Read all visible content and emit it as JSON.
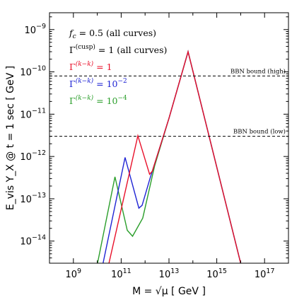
{
  "chart_data": {
    "type": "line",
    "xlabel": "M = √μ  [ GeV ]",
    "ylabel": "E_vis Y_X @ t = 1 sec [ GeV ]",
    "x_scale": "log",
    "y_scale": "log",
    "xlim": [
      100000000.0,
      1e+18
    ],
    "ylim": [
      3e-15,
      2.5e-09
    ],
    "x_ticks": [
      1000000000.0,
      100000000000.0,
      10000000000000.0,
      1000000000000000.0,
      1e+17
    ],
    "x_tick_labels": [
      {
        "base": "10",
        "exp": "9"
      },
      {
        "base": "10",
        "exp": "11"
      },
      {
        "base": "10",
        "exp": "13"
      },
      {
        "base": "10",
        "exp": "15"
      },
      {
        "base": "10",
        "exp": "17"
      }
    ],
    "y_ticks": [
      1e-14,
      1e-13,
      1e-12,
      1e-11,
      1e-10,
      1e-09
    ],
    "y_tick_labels": [
      {
        "base": "10",
        "exp": "−14"
      },
      {
        "base": "10",
        "exp": "−13"
      },
      {
        "base": "10",
        "exp": "−12"
      },
      {
        "base": "10",
        "exp": "−11"
      },
      {
        "base": "10",
        "exp": "−10"
      },
      {
        "base": "10",
        "exp": "−9"
      }
    ],
    "legend": {
      "fc_line": {
        "var": "f",
        "sub": "c",
        "rest": " = 0.5 (all curves)"
      },
      "cusp_line": {
        "var": "Γ",
        "sup": "(cusp)",
        "rest": " = 1 (all curves)"
      },
      "entries": [
        {
          "var": "Γ",
          "sup": "(k−k)",
          "rest_base": " = 1",
          "rest_exp": "",
          "color": "#e8102a"
        },
        {
          "var": "Γ",
          "sup": "(k−k)",
          "rest_base": " = 10",
          "rest_exp": "−2",
          "color": "#1f24d4"
        },
        {
          "var": "Γ",
          "sup": "(k−k)",
          "rest_base": " = 10",
          "rest_exp": "−4",
          "color": "#2a9e2a"
        }
      ]
    },
    "hlines": [
      {
        "label": "BBN bound (high)",
        "y": 8e-11
      },
      {
        "label": "BBN bound (low)",
        "y": 3e-12
      }
    ],
    "series": [
      {
        "color": "#2a9e2a",
        "points": [
          [
            10000000000.0,
            2.8e-15
          ],
          [
            55000000000.0,
            3.3e-13
          ],
          [
            180000000000.0,
            1.8e-14
          ],
          [
            300000000000.0,
            1.3e-14
          ],
          [
            800000000000.0,
            3.5e-14
          ],
          [
            2500000000000.0,
            6e-13
          ],
          [
            10000000000000.0,
            8e-12
          ],
          [
            63000000000000.0,
            3e-10
          ],
          [
            1e+16,
            3e-15
          ]
        ]
      },
      {
        "color": "#1f24d4",
        "points": [
          [
            17000000000.0,
            2.8e-15
          ],
          [
            145000000000.0,
            9.5e-13
          ],
          [
            550000000000.0,
            6e-14
          ],
          [
            750000000000.0,
            7e-14
          ],
          [
            1600000000000.0,
            3e-13
          ],
          [
            10000000000000.0,
            8e-12
          ],
          [
            63000000000000.0,
            3e-10
          ],
          [
            1e+16,
            3e-15
          ]
        ]
      },
      {
        "color": "#e8102a",
        "points": [
          [
            30000000000.0,
            2.8e-15
          ],
          [
            500000000000.0,
            3.1e-12
          ],
          [
            1550000000000.0,
            3.8e-13
          ],
          [
            2000000000000.0,
            4.5e-13
          ],
          [
            10000000000000.0,
            8e-12
          ],
          [
            63000000000000.0,
            3e-10
          ],
          [
            1e+16,
            3e-15
          ]
        ]
      }
    ]
  }
}
